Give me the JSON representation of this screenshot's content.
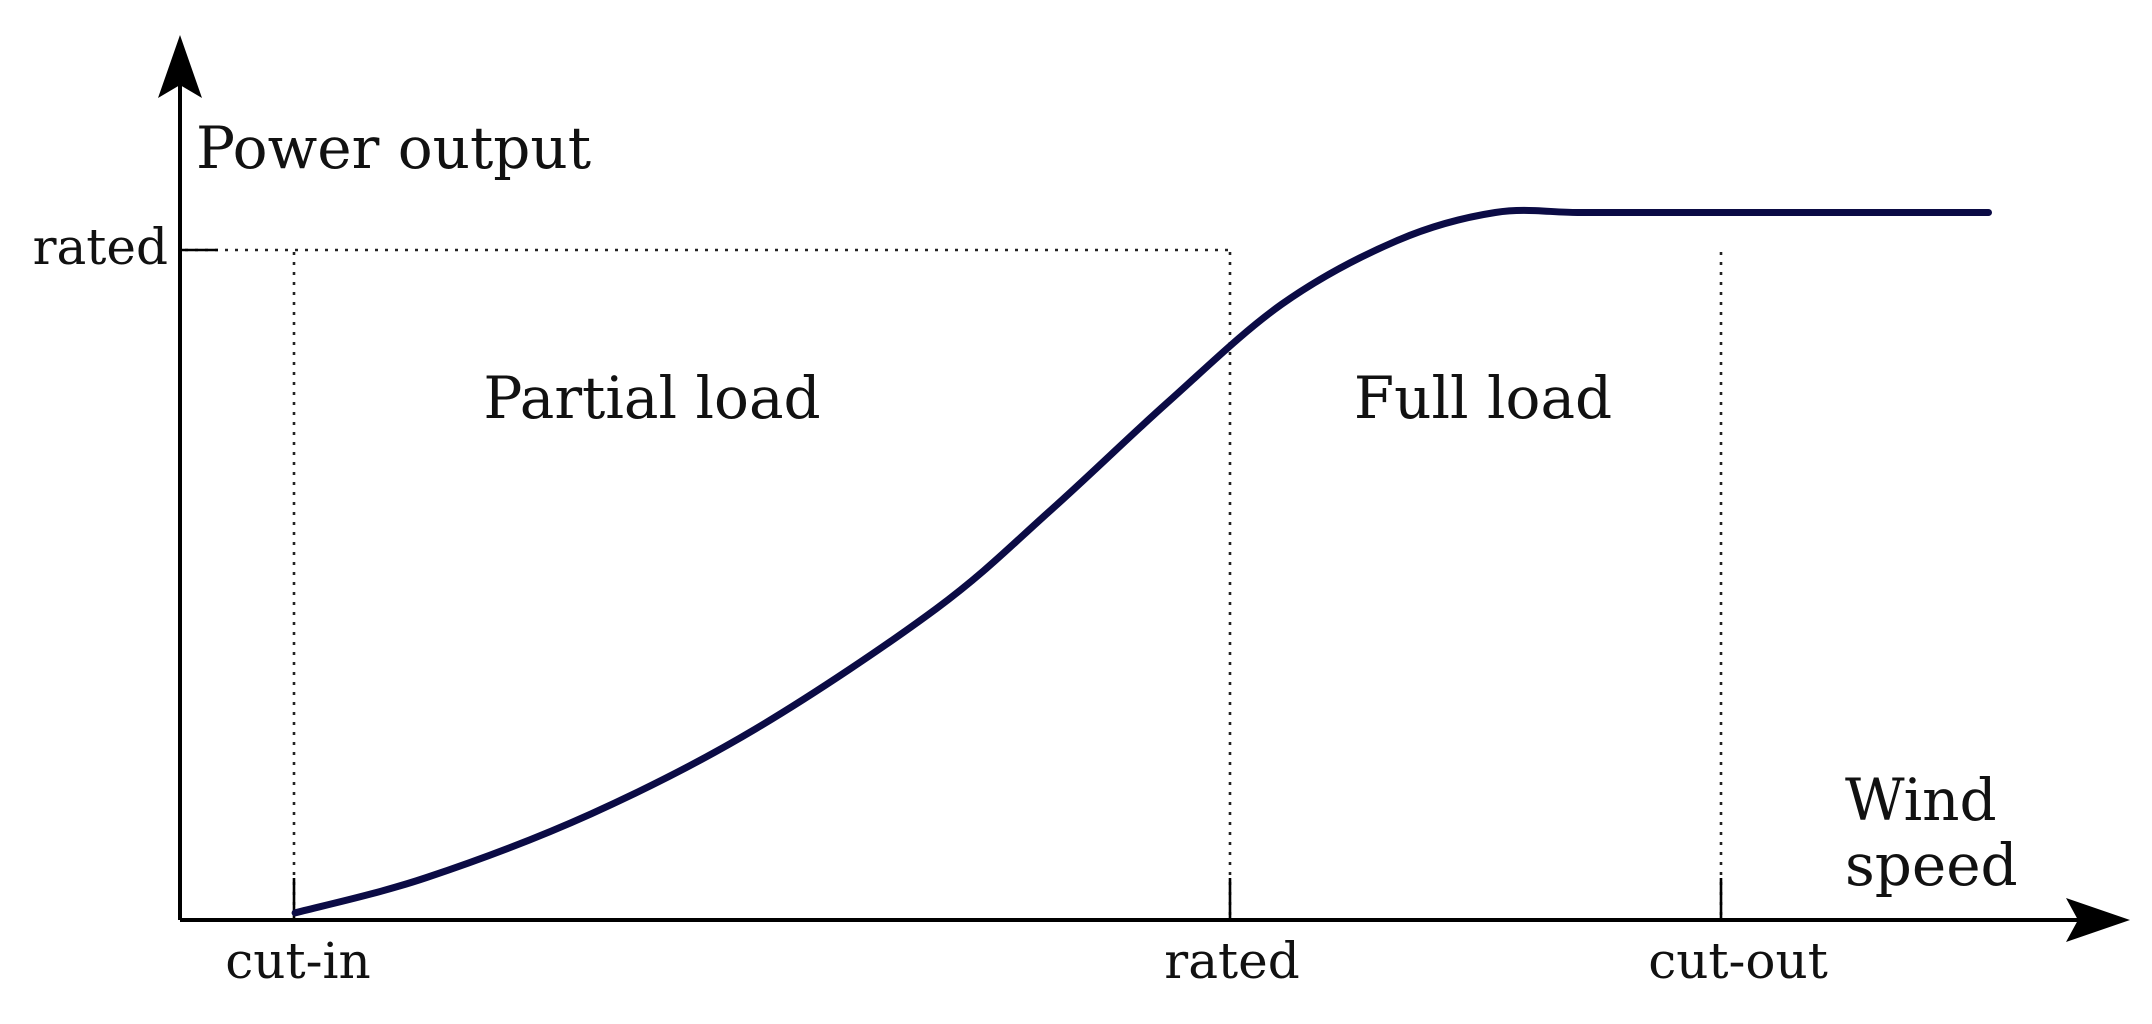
{
  "chart_data": {
    "type": "line",
    "title": "",
    "ylabel": "Power output",
    "xlabel": "Wind speed",
    "x_ticks": [
      "cut-in",
      "rated",
      "cut-out"
    ],
    "y_ticks": [
      "rated"
    ],
    "regions": [
      "Partial load",
      "Full load"
    ],
    "grid": false,
    "legend": "none",
    "xlim": [
      0,
      1.18
    ],
    "ylim": [
      0,
      1.06
    ],
    "curve_color": "#0b0b45",
    "series": [
      {
        "x": [
          0.07,
          0.15,
          0.25,
          0.35,
          0.46,
          0.53,
          0.6,
          0.67,
          0.74,
          0.8,
          0.85,
          0.9,
          1.1
        ],
        "y": [
          0.01,
          0.06,
          0.15,
          0.27,
          0.44,
          0.58,
          0.73,
          0.87,
          0.96,
          1.0,
          1.0,
          1.0,
          1.0
        ]
      }
    ]
  }
}
